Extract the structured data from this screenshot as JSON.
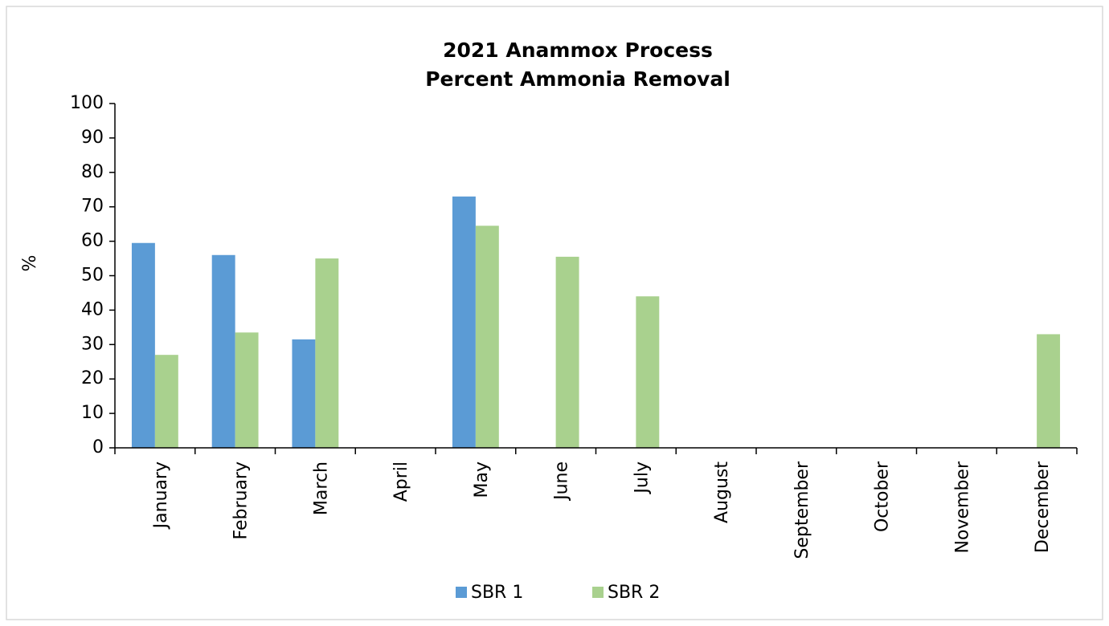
{
  "chart_data": {
    "type": "bar",
    "title": [
      "2021 Anammox Process",
      "Percent Ammonia Removal"
    ],
    "y_label": "%",
    "categories": [
      "January",
      "February",
      "March",
      "April",
      "May",
      "June",
      "July",
      "August",
      "September",
      "October",
      "November",
      "December"
    ],
    "series": [
      {
        "name": "SBR 1",
        "color": "#5b9bd5",
        "values": [
          59.5,
          56,
          31.5,
          null,
          73,
          null,
          null,
          null,
          null,
          null,
          null,
          null
        ]
      },
      {
        "name": "SBR 2",
        "color": "#a9d18e",
        "values": [
          27,
          33.5,
          55,
          null,
          64.5,
          55.5,
          44,
          null,
          null,
          null,
          null,
          33
        ]
      }
    ],
    "ylim": [
      0,
      100
    ],
    "yticks": [
      0,
      10,
      20,
      30,
      40,
      50,
      60,
      70,
      80,
      90,
      100
    ],
    "grid": false,
    "legend": "bottom"
  }
}
